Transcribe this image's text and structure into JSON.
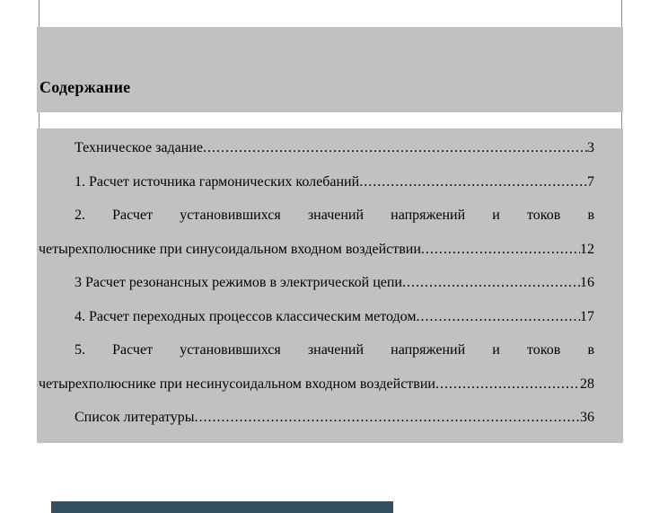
{
  "document": {
    "heading": "Содержание",
    "toc_lines": [
      {
        "text": "Техническое задание",
        "page": "3",
        "indent": true,
        "leader": true,
        "justify": false
      },
      {
        "text": "1. Расчет источника гармонических колебаний",
        "page": "7",
        "indent": true,
        "leader": true,
        "justify": false
      },
      {
        "text": "2. Расчет установившихся значений напряжений и токов в",
        "page": "",
        "indent": true,
        "leader": false,
        "justify": true
      },
      {
        "text": "четырехполюснике при синусоидальном входном воздействии",
        "page": "12",
        "indent": false,
        "leader": true,
        "justify": false
      },
      {
        "text": "3 Расчет резонансных режимов в электрической цепи",
        "page": "16",
        "indent": true,
        "leader": true,
        "justify": false
      },
      {
        "text": "4. Расчет переходных процессов классическим методом",
        "page": "17",
        "indent": true,
        "leader": true,
        "justify": false
      },
      {
        "text": "5. Расчет установившихся значений напряжений и токов в",
        "page": "",
        "indent": true,
        "leader": false,
        "justify": true
      },
      {
        "text": "четырехполюснике при несинусоидальном входном воздействии",
        "page": "28",
        "indent": false,
        "leader": true,
        "justify": false
      },
      {
        "text": "Список литературы",
        "page": "36",
        "indent": true,
        "leader": true,
        "justify": false
      }
    ]
  },
  "colors": {
    "selection_highlight": "#c1c1c1",
    "page_edge_line": "#8c8c8c",
    "bottom_bar": "#32505e",
    "text": "#000000",
    "background": "#ffffff"
  }
}
